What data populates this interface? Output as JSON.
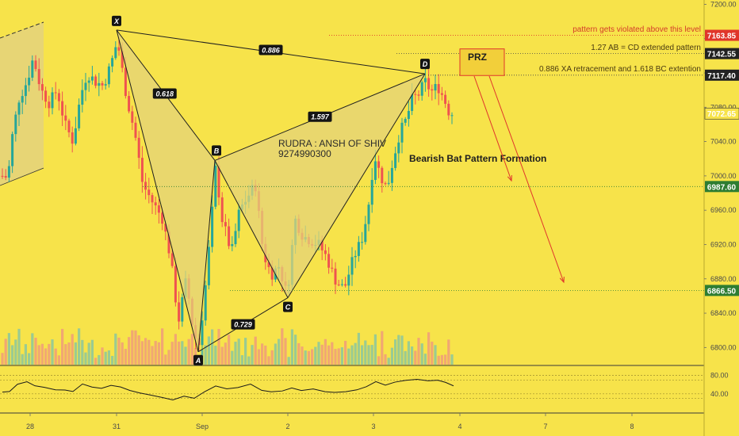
{
  "colors": {
    "background": "#F7E34A",
    "bull": "#26a69a",
    "bear": "#ef5350",
    "pattern_fill": "#E4D37A",
    "pattern_line": "#1f1f1f",
    "annotation_red": "#e0352b",
    "green_label": "#2e7d32",
    "rsi_line": "#1a1a1a"
  },
  "chart_data": {
    "type": "candlestick",
    "title": "Bearish Bat Pattern Formation",
    "watermark": [
      "RUDRA : ANSH OF SHIV",
      "9274990300"
    ],
    "x_ticks": [
      "28",
      "31",
      "Sep",
      "2",
      "3",
      "4",
      "7",
      "8"
    ],
    "y_ticks": [
      "7200.00",
      "7160.00",
      "7120.00",
      "7080.00",
      "7040.00",
      "7000.00",
      "6960.00",
      "6920.00",
      "6880.00",
      "6840.00",
      "6800.00"
    ],
    "ylim": [
      6780,
      7205
    ],
    "rsi_ticks": [
      "80.00",
      "40.00"
    ],
    "rsi_range": [
      0,
      100
    ],
    "price_labels": [
      {
        "value": 7163.85,
        "text": "7163.85",
        "color": "#e0352b"
      },
      {
        "value": 7142.55,
        "text": "7142.55",
        "color": "#222222"
      },
      {
        "value": 7117.4,
        "text": "7117.40",
        "color": "#222222"
      },
      {
        "value": 7072.65,
        "text": "7072.65",
        "color": "#F7E34A"
      },
      {
        "value": 6987.6,
        "text": "6987.60",
        "color": "#2e7d32"
      },
      {
        "value": 6866.5,
        "text": "6866.50",
        "color": "#2e7d32"
      }
    ],
    "pattern_points": [
      {
        "label": "X",
        "value": 7170
      },
      {
        "label": "A",
        "value": 6795
      },
      {
        "label": "B",
        "value": 7018
      },
      {
        "label": "C",
        "value": 6858
      },
      {
        "label": "D",
        "value": 7119
      }
    ],
    "ratios": [
      {
        "text": "0.886"
      },
      {
        "text": "0.618"
      },
      {
        "text": "1.597"
      },
      {
        "text": "0.729"
      }
    ],
    "annotations": [
      {
        "text": "pattern gets violated above this level"
      },
      {
        "text": "1.27 AB = CD extended pattern"
      },
      {
        "text": "0.886 XA retracement and 1.618 BC extention"
      }
    ],
    "prz_label": "PRZ"
  }
}
